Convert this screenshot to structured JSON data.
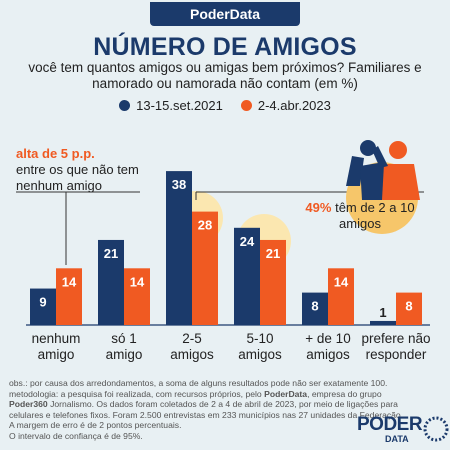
{
  "header": {
    "badge": "PoderData",
    "title": "NÚMERO DE AMIGOS",
    "subtitle": "você tem quantos amigos ou amigas bem próximos? Familiares e namorado ou namorada não contam (em %)"
  },
  "colors": {
    "series1": "#1b3a6b",
    "series2": "#f05a22",
    "highlight": "#fbe7b0"
  },
  "annotations": {
    "left_highlight": "alta de 5 p.p.",
    "left_text": "entre os que não tem nenhum amigo",
    "right_highlight": "49%",
    "right_text": "têm de 2 a 10 amigos"
  },
  "chart_data": {
    "type": "bar",
    "categories": [
      [
        "nenhum",
        "amigo"
      ],
      [
        "só 1",
        "amigo"
      ],
      [
        "2-5",
        "amigos"
      ],
      [
        "5-10",
        "amigos"
      ],
      [
        "+ de 10",
        "amigos"
      ],
      [
        "prefere não",
        "responder"
      ]
    ],
    "series": [
      {
        "name": "13-15.set.2021",
        "values": [
          9,
          21,
          38,
          24,
          8,
          1
        ]
      },
      {
        "name": "2-4.abr.2023",
        "values": [
          14,
          14,
          28,
          21,
          14,
          8
        ]
      }
    ]
  },
  "footer": {
    "line1": "obs.: por causa dos arredondamentos, a soma de alguns resultados pode não ser exatamente 100.",
    "line2a": "metodologia: a pesquisa foi realizada, com recursos próprios, pelo ",
    "line2b": "PoderData",
    "line2c": ", empresa do grupo ",
    "line2d": "Poder360",
    "line3": "Jornalismo. Os dados foram coletados de 2 a 4 de abril de 2023, por meio de ligações para celulares e telefones fixos. Foram 2.500 entrevistas em 233 municípios nas 27 unidades da Federação. A margem de erro é de 2 pontos percentuais.",
    "line4": "O intervalo de confiança é de 95%.",
    "logo": "PODER",
    "logo_sub": "DATA"
  }
}
